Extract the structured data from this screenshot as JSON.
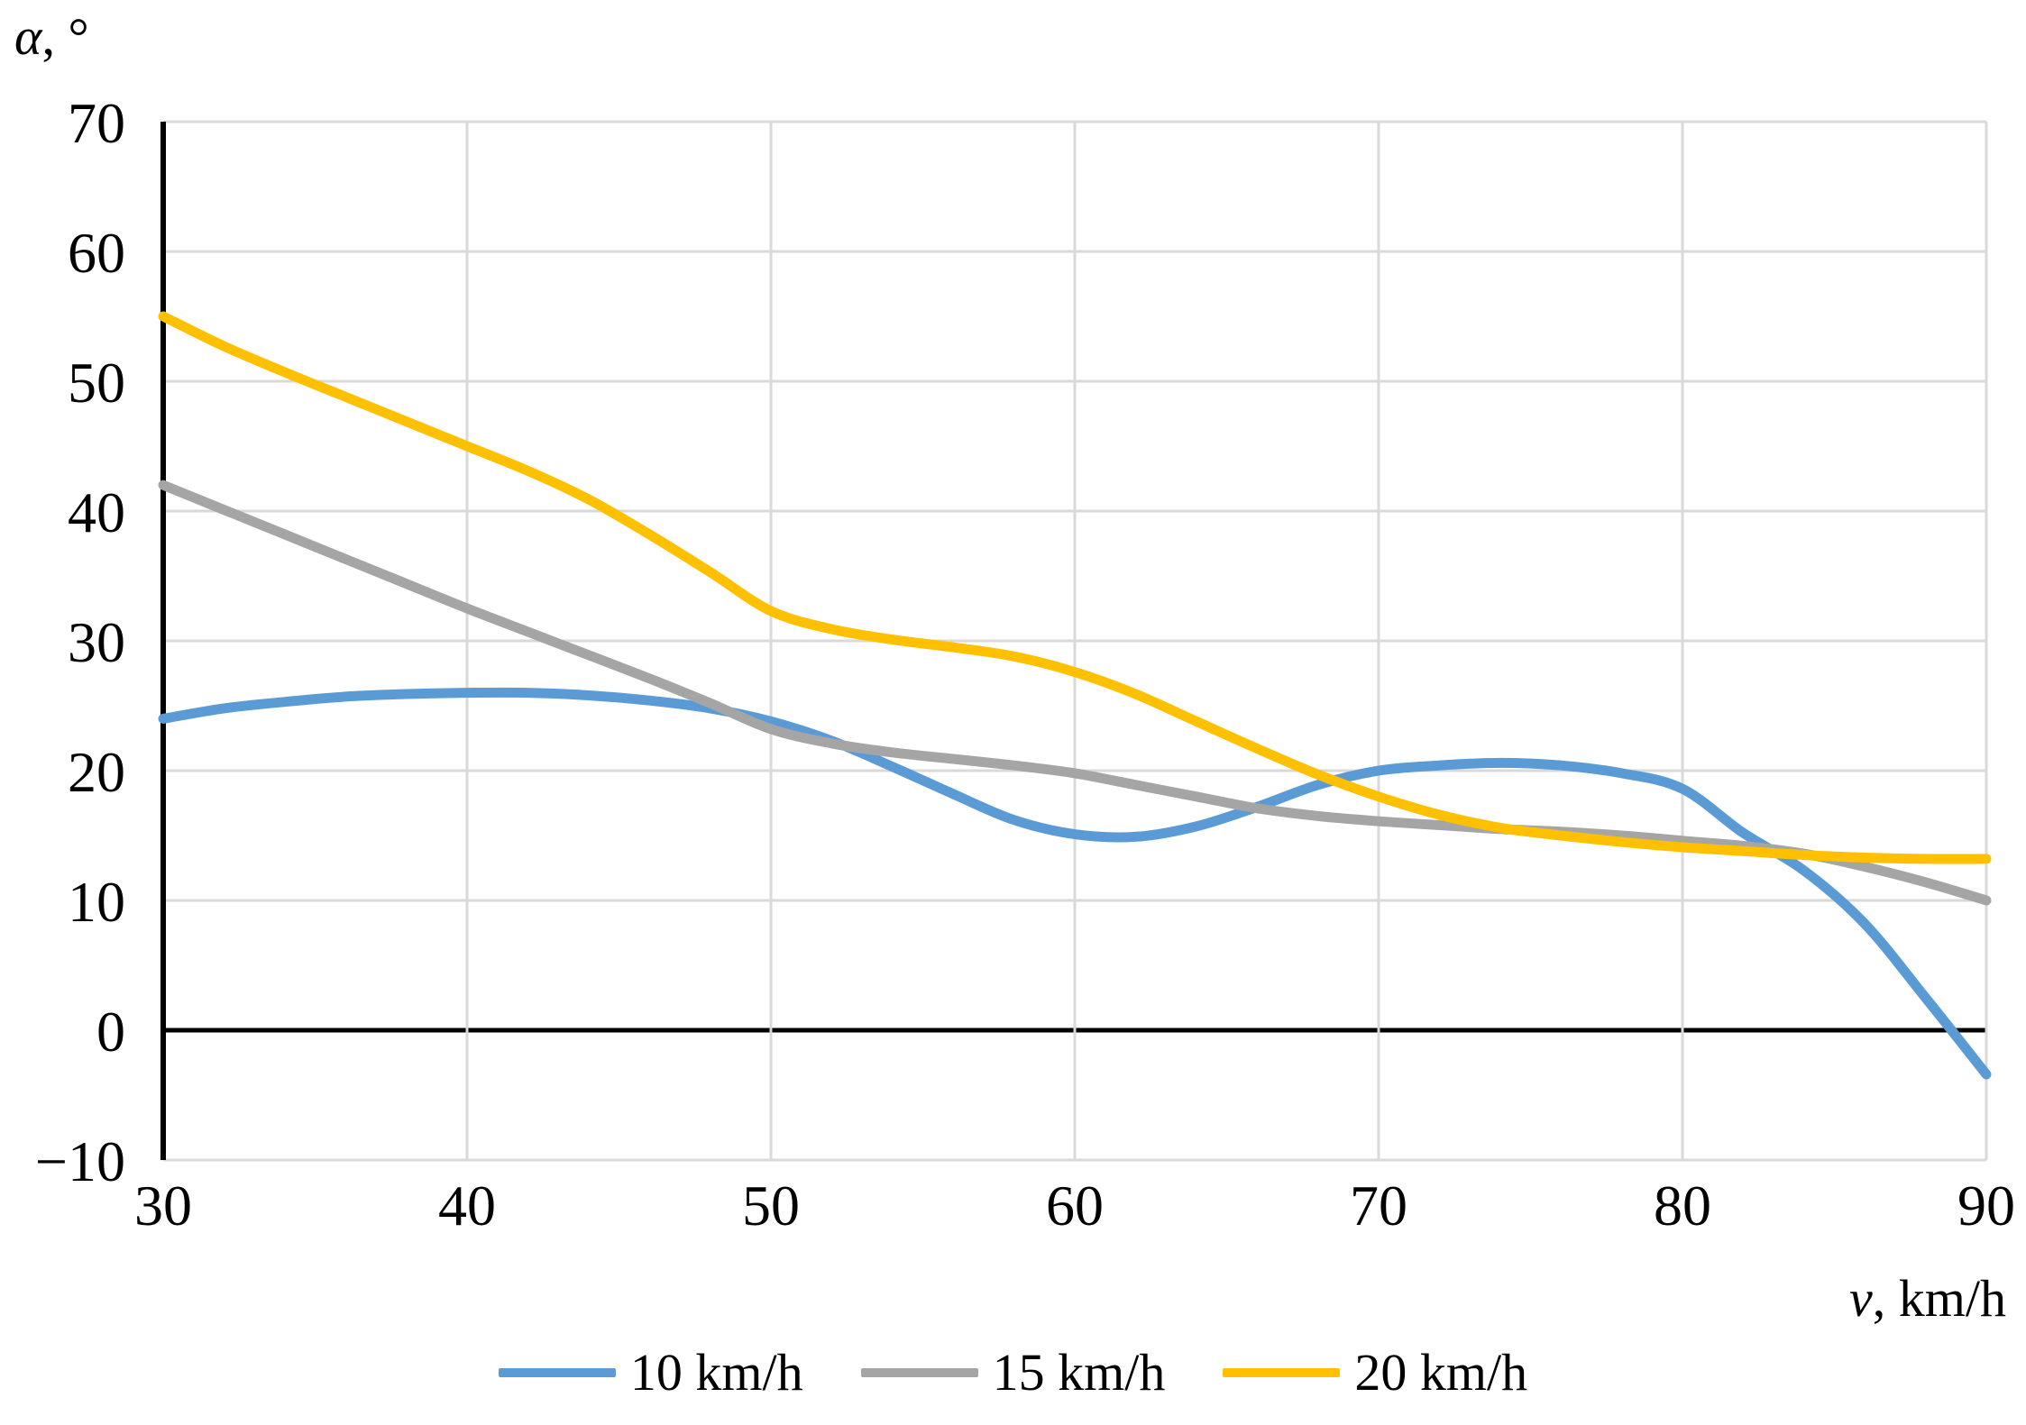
{
  "colors": {
    "background": "#FFFFFF",
    "text": "#000000",
    "grid": "#D9D9D9",
    "axis": "#000000",
    "series_blue": "#5B9BD5",
    "series_gray": "#A5A5A5",
    "series_yellow": "#FFC000"
  },
  "axis_titles": {
    "y_symbol": "α",
    "y_unit": ", °",
    "x_symbol": "v",
    "x_unit": ", km/h"
  },
  "legend": [
    {
      "label": "10 km/h",
      "color": "#5B9BD5"
    },
    {
      "label": "15 km/h",
      "color": "#A5A5A5"
    },
    {
      "label": "20 km/h",
      "color": "#FFC000"
    }
  ],
  "chart_data": {
    "type": "line",
    "title": "",
    "xlabel": "v, km/h",
    "ylabel": "α, °",
    "xlim": [
      30,
      90
    ],
    "ylim": [
      -10,
      70
    ],
    "xticks": [
      30,
      40,
      50,
      60,
      70,
      80,
      90
    ],
    "yticks": [
      70,
      60,
      50,
      40,
      30,
      20,
      10,
      0,
      -10
    ],
    "grid": true,
    "zero_line": 0,
    "legend_position": "bottom",
    "series": [
      {
        "name": "10 km/h",
        "color": "#5B9BD5",
        "points": [
          [
            30,
            24
          ],
          [
            32,
            24.8
          ],
          [
            34,
            25.3
          ],
          [
            36,
            25.7
          ],
          [
            38,
            25.9
          ],
          [
            40,
            26
          ],
          [
            42,
            26
          ],
          [
            44,
            25.8
          ],
          [
            46,
            25.4
          ],
          [
            48,
            24.8
          ],
          [
            50,
            23.8
          ],
          [
            52,
            22.3
          ],
          [
            54,
            20.3
          ],
          [
            56,
            18.2
          ],
          [
            58,
            16.2
          ],
          [
            60,
            15.1
          ],
          [
            62,
            14.9
          ],
          [
            64,
            15.7
          ],
          [
            66,
            17.2
          ],
          [
            68,
            18.9
          ],
          [
            70,
            20
          ],
          [
            72,
            20.4
          ],
          [
            74,
            20.6
          ],
          [
            76,
            20.4
          ],
          [
            78,
            19.8
          ],
          [
            80,
            18.6
          ],
          [
            82,
            15.2
          ],
          [
            84,
            12.3
          ],
          [
            86,
            8.2
          ],
          [
            88,
            2.5
          ],
          [
            90,
            -3.4
          ]
        ]
      },
      {
        "name": "15 km/h",
        "color": "#A5A5A5",
        "points": [
          [
            30,
            42
          ],
          [
            32,
            40.1
          ],
          [
            34,
            38.2
          ],
          [
            36,
            36.3
          ],
          [
            38,
            34.4
          ],
          [
            40,
            32.5
          ],
          [
            42,
            30.7
          ],
          [
            44,
            28.9
          ],
          [
            46,
            27.1
          ],
          [
            48,
            25.2
          ],
          [
            50,
            23.2
          ],
          [
            52,
            22.1
          ],
          [
            54,
            21.4
          ],
          [
            56,
            20.9
          ],
          [
            58,
            20.4
          ],
          [
            60,
            19.8
          ],
          [
            62,
            18.9
          ],
          [
            64,
            18
          ],
          [
            66,
            17.1
          ],
          [
            68,
            16.5
          ],
          [
            70,
            16.1
          ],
          [
            72,
            15.8
          ],
          [
            74,
            15.5
          ],
          [
            76,
            15.3
          ],
          [
            78,
            15
          ],
          [
            80,
            14.6
          ],
          [
            82,
            14.2
          ],
          [
            84,
            13.6
          ],
          [
            86,
            12.6
          ],
          [
            88,
            11.4
          ],
          [
            90,
            10
          ]
        ]
      },
      {
        "name": "20 km/h",
        "color": "#FFC000",
        "points": [
          [
            30,
            55
          ],
          [
            32,
            52.7
          ],
          [
            34,
            50.7
          ],
          [
            36,
            48.8
          ],
          [
            38,
            46.9
          ],
          [
            40,
            45
          ],
          [
            42,
            43.1
          ],
          [
            44,
            40.9
          ],
          [
            46,
            38.2
          ],
          [
            48,
            35.3
          ],
          [
            50,
            32.3
          ],
          [
            52,
            30.9
          ],
          [
            54,
            30.1
          ],
          [
            56,
            29.5
          ],
          [
            58,
            28.8
          ],
          [
            60,
            27.6
          ],
          [
            62,
            25.9
          ],
          [
            64,
            23.8
          ],
          [
            66,
            21.7
          ],
          [
            68,
            19.7
          ],
          [
            70,
            18
          ],
          [
            72,
            16.6
          ],
          [
            74,
            15.6
          ],
          [
            76,
            15
          ],
          [
            78,
            14.5
          ],
          [
            80,
            14.1
          ],
          [
            82,
            13.8
          ],
          [
            84,
            13.5
          ],
          [
            86,
            13.3
          ],
          [
            88,
            13.2
          ],
          [
            90,
            13.2
          ]
        ]
      }
    ]
  }
}
